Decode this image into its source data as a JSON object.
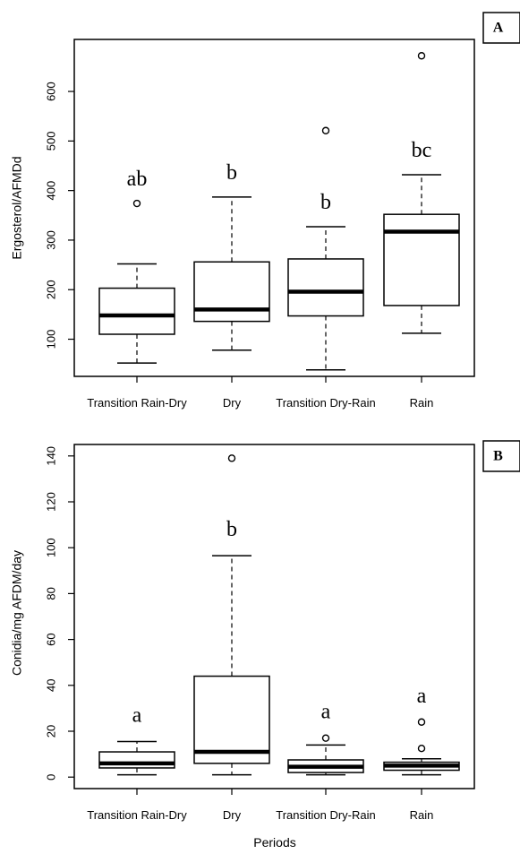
{
  "chart_data": [
    {
      "type": "box",
      "panel_label": "A",
      "ylabel": "Ergosterol/AFMDd",
      "xlabel": "",
      "categories": [
        "Transition Rain-Dry",
        "Dry",
        "Transition Dry-Rain",
        "Rain"
      ],
      "ylim": [
        25,
        705
      ],
      "yticks": [
        100,
        200,
        300,
        400,
        500,
        600
      ],
      "boxes": [
        {
          "category": "Transition Rain-Dry",
          "whisker_low": 52,
          "q1": 110,
          "median": 148,
          "q3": 203,
          "whisker_high": 252,
          "outliers": [
            374
          ],
          "letter": "ab"
        },
        {
          "category": "Dry",
          "whisker_low": 78,
          "q1": 136,
          "median": 160,
          "q3": 256,
          "whisker_high": 387,
          "outliers": [],
          "letter": "b"
        },
        {
          "category": "Transition Dry-Rain",
          "whisker_low": 38,
          "q1": 147,
          "median": 196,
          "q3": 262,
          "whisker_high": 327,
          "outliers": [
            521
          ],
          "letter": "b"
        },
        {
          "category": "Rain",
          "whisker_low": 112,
          "q1": 168,
          "median": 317,
          "q3": 352,
          "whisker_high": 432,
          "outliers": [
            672
          ],
          "letter": "bc"
        }
      ]
    },
    {
      "type": "box",
      "panel_label": "B",
      "ylabel": "Conidia/mg AFDM/day",
      "xlabel": "Periods",
      "categories": [
        "Transition Rain-Dry",
        "Dry",
        "Transition Dry-Rain",
        "Rain"
      ],
      "ylim": [
        -5,
        145
      ],
      "yticks": [
        0,
        20,
        40,
        60,
        80,
        100,
        120,
        140
      ],
      "boxes": [
        {
          "category": "Transition Rain-Dry",
          "whisker_low": 1,
          "q1": 4,
          "median": 6,
          "q3": 11,
          "whisker_high": 15.5,
          "outliers": [],
          "letter": "a"
        },
        {
          "category": "Dry",
          "whisker_low": 1,
          "q1": 6,
          "median": 11,
          "q3": 44,
          "whisker_high": 96.5,
          "outliers": [
            139
          ],
          "letter": "b"
        },
        {
          "category": "Transition Dry-Rain",
          "whisker_low": 1,
          "q1": 2,
          "median": 4.5,
          "q3": 7.5,
          "whisker_high": 14,
          "outliers": [
            17
          ],
          "letter": "a"
        },
        {
          "category": "Rain",
          "whisker_low": 1,
          "q1": 3,
          "median": 5,
          "q3": 6.5,
          "whisker_high": 8,
          "outliers": [
            12.5,
            24
          ],
          "letter": "a"
        }
      ]
    }
  ]
}
